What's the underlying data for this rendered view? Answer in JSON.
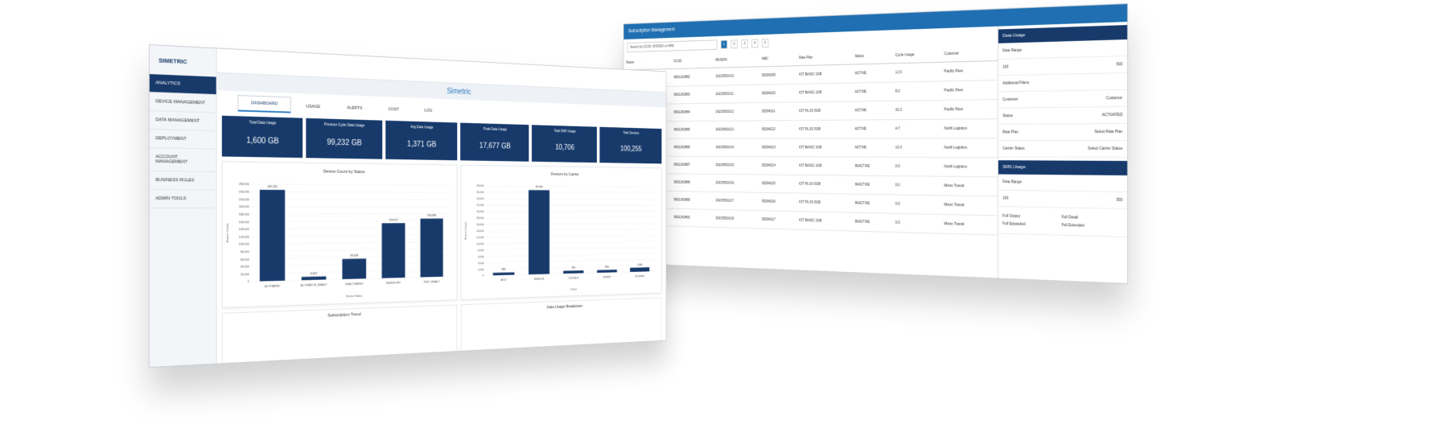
{
  "left_app": {
    "brand": "SIMETRIC",
    "title": "Simetric",
    "menu": [
      "ANALYTICS",
      "DEVICE MANAGEMENT",
      "DATA MANAGEMENT",
      "DEPLOYMENT",
      "ACCOUNT MANAGEMENT",
      "BUSINESS RULES",
      "ADMIN TOOLS"
    ],
    "tabs": [
      "DASHBOARD",
      "USAGE",
      "ALERTS",
      "COST",
      "LOG"
    ],
    "kpis": [
      {
        "label": "Total Data Usage",
        "value": "1,600 GB"
      },
      {
        "label": "Previous Cycle Data Usage",
        "value": "99,232 GB"
      },
      {
        "label": "Avg Data Usage",
        "value": "1,371 GB"
      },
      {
        "label": "Peak Data Usage",
        "value": "17,677 GB"
      },
      {
        "label": "Total SMS Usage",
        "value": "10,706"
      },
      {
        "label": "Total Devices",
        "value": "100,255"
      }
    ],
    "charts": [
      {
        "type": "bar",
        "title": "Device Count by Status",
        "xlabel": "Device Status",
        "ylabel": "Device Count",
        "categories": [
          "ACTIVATED",
          "ACTIVATION_READY",
          "DEACTIVATED",
          "INVENTORY",
          "TEST_READY"
        ],
        "values": [
          245220,
          8917,
          55626,
          153617,
          165890
        ],
        "value_labels": [
          "245,220",
          "8,917",
          "55,626",
          "153,617",
          "165,890"
        ],
        "color": "#173a6b",
        "ylim": [
          0,
          260000
        ],
        "yticks": [
          0,
          {
            "value": 20000,
            "label": "20,000"
          },
          {
            "value": 40000,
            "label": "40,000"
          },
          {
            "value": 60000,
            "label": "60,000"
          },
          {
            "value": 80000,
            "label": "80,000"
          },
          {
            "value": 100000,
            "label": "100,000"
          },
          {
            "value": 120000,
            "label": "120,000"
          },
          {
            "value": 140000,
            "label": "140,000"
          },
          {
            "value": 160000,
            "label": "160,000"
          },
          {
            "value": 180000,
            "label": "180,000"
          },
          {
            "value": 200000,
            "label": "200,000"
          },
          {
            "value": 220000,
            "label": "220,000"
          },
          {
            "value": 240000,
            "label": "240,000"
          },
          {
            "value": 260000,
            "label": "260,000"
          }
        ]
      },
      {
        "type": "bar",
        "title": "Devices by Carrier",
        "xlabel": "Carrier",
        "ylabel": "Device Count",
        "categories": [
          "AT&T",
          "VERIZON",
          "T-MOBILE",
          "SPRINT",
          "ROGERS"
        ],
        "values": [
          800,
          26786,
          870,
          850,
          1380
        ],
        "value_labels": [
          "800",
          "26,786",
          "870",
          "850",
          "1,380"
        ],
        "color": "#173a6b",
        "ylim": [
          0,
          28000
        ],
        "yticks": [
          0,
          {
            "value": 2000,
            "label": "2,000"
          },
          {
            "value": 4000,
            "label": "4,000"
          },
          {
            "value": 6000,
            "label": "6,000"
          },
          {
            "value": 8000,
            "label": "8,000"
          },
          {
            "value": 10000,
            "label": "10,000"
          },
          {
            "value": 12000,
            "label": "12,000"
          },
          {
            "value": 14000,
            "label": "14,000"
          },
          {
            "value": 16000,
            "label": "16,000"
          },
          {
            "value": 18000,
            "label": "18,000"
          },
          {
            "value": 20000,
            "label": "20,000"
          },
          {
            "value": 22000,
            "label": "22,000"
          },
          {
            "value": 24000,
            "label": "24,000"
          },
          {
            "value": 26000,
            "label": "26,000"
          },
          {
            "value": 28000,
            "label": "28,000"
          }
        ]
      }
    ],
    "bottom_cards": [
      "Subscription Trend",
      "Data Usage Breakdown"
    ]
  },
  "right_app": {
    "title": "Subscription Management",
    "search": "Search by ICCID, MSISDN or IMEI",
    "pages": [
      "1",
      "2",
      "3",
      "4",
      "5"
    ],
    "table": {
      "headers": [
        "Status",
        "ICCID",
        "MSISDN",
        "IMEI",
        "Rate Plan",
        "Status",
        "Cycle Usage",
        "Customer"
      ],
      "rows": [
        [
          "ACTIVATED",
          "8901260882",
          "16215551010",
          "35284209",
          "IOT BASIC 1GB",
          "ACTIVE",
          "12.5",
          "Pacific Fleet"
        ],
        [
          "ACTIVATED",
          "8901260883",
          "16215551011",
          "35284210",
          "IOT BASIC 1GB",
          "ACTIVE",
          "8.2",
          "Pacific Fleet"
        ],
        [
          "ACTIVATED",
          "8901260884",
          "16215551012",
          "35284211",
          "IOT PLUS 5GB",
          "ACTIVE",
          "31.0",
          "Pacific Fleet"
        ],
        [
          "ACTIVATED",
          "8901260885",
          "16215551013",
          "35284212",
          "IOT PLUS 5GB",
          "ACTIVE",
          "4.7",
          "North Logistics"
        ],
        [
          "ACTIVATED",
          "8901260886",
          "16215551014",
          "35284213",
          "IOT BASIC 1GB",
          "ACTIVE",
          "19.3",
          "North Logistics"
        ],
        [
          "DEACTIVATED",
          "8901260887",
          "16215551015",
          "35284214",
          "IOT BASIC 1GB",
          "INACTIVE",
          "0.0",
          "North Logistics"
        ],
        [
          "DEACTIVATED",
          "8901260888",
          "16215551016",
          "35284215",
          "IOT PLUS 5GB",
          "INACTIVE",
          "0.0",
          "Metro Transit"
        ],
        [
          "DEACTIVATED",
          "8901260889",
          "16215551017",
          "35284216",
          "IOT PLUS 5GB",
          "INACTIVE",
          "0.0",
          "Metro Transit"
        ],
        [
          "DEACTIVATED",
          "8901260890",
          "16215551018",
          "35284217",
          "IOT BASIC 1GB",
          "INACTIVE",
          "0.0",
          "Metro Transit"
        ]
      ]
    },
    "side": {
      "data_title": "Data Usage",
      "date_label": "Date Range",
      "date_from": "100",
      "date_to": "500",
      "filters_label": "Additional Filters",
      "fields": [
        [
          "Customer",
          "Customer"
        ],
        [
          "Status",
          "ACTIVATED"
        ],
        [
          "Rate Plan",
          "Select Rate Plan"
        ],
        [
          "Carrier Status",
          "Select Carrier Status"
        ]
      ],
      "sms_title": "SMS Usage",
      "sms_date_label": "Date Range",
      "sms_from": "100",
      "sms_to": "500",
      "checks": [
        "Full Output",
        "Full Detail",
        "Full Expanded",
        "Full Extended"
      ]
    }
  }
}
